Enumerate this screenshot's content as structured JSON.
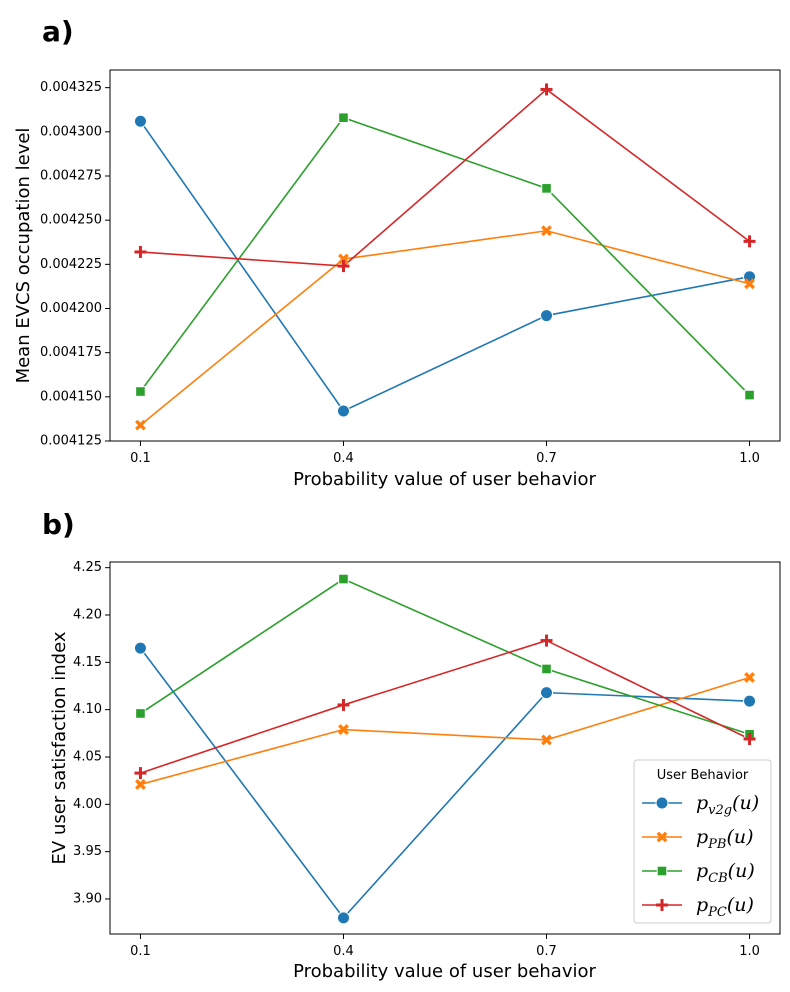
{
  "chart_data": [
    {
      "panel_label": "a)",
      "type": "line",
      "x": [
        0.1,
        0.4,
        0.7,
        1.0
      ],
      "x_tick_labels": [
        "0.1",
        "0.4",
        "0.7",
        "1.0"
      ],
      "xlabel": "Probability value of user behavior",
      "ylabel": "Mean EVCS occupation level",
      "ylim": [
        0.004125,
        0.004335
      ],
      "y_ticks": [
        0.004125,
        0.00415,
        0.004175,
        0.0042,
        0.004225,
        0.00425,
        0.004275,
        0.0043,
        0.004325
      ],
      "y_tick_labels": [
        "0.004125",
        "0.004150",
        "0.004175",
        "0.004200",
        "0.004225",
        "0.004250",
        "0.004275",
        "0.004300",
        "0.004325"
      ],
      "grid": false,
      "legend": null,
      "series": [
        {
          "key": "v2g",
          "color": "#1f77b4",
          "marker": "circle",
          "values": [
            0.004306,
            0.004142,
            0.004196,
            0.004218
          ]
        },
        {
          "key": "pb",
          "color": "#ff7f0e",
          "marker": "x",
          "values": [
            0.004134,
            0.004228,
            0.004244,
            0.004214
          ]
        },
        {
          "key": "cb",
          "color": "#2ca02c",
          "marker": "square",
          "values": [
            0.004153,
            0.004308,
            0.004268,
            0.004151
          ]
        },
        {
          "key": "pc",
          "color": "#d62728",
          "marker": "plus",
          "values": [
            0.004232,
            0.004224,
            0.004324,
            0.004238
          ]
        }
      ]
    },
    {
      "panel_label": "b)",
      "type": "line",
      "x": [
        0.1,
        0.4,
        0.7,
        1.0
      ],
      "x_tick_labels": [
        "0.1",
        "0.4",
        "0.7",
        "1.0"
      ],
      "xlabel": "Probability value of user behavior",
      "ylabel": "EV user satisfaction index",
      "ylim": [
        3.863,
        4.256
      ],
      "y_ticks": [
        3.9,
        3.95,
        4.0,
        4.05,
        4.1,
        4.15,
        4.2,
        4.25
      ],
      "y_tick_labels": [
        "3.90",
        "3.95",
        "4.00",
        "4.05",
        "4.10",
        "4.15",
        "4.20",
        "4.25"
      ],
      "grid": false,
      "legend": {
        "placement": "lower-right",
        "title": "User Behavior",
        "entries": [
          {
            "key": "v2g",
            "main": "p",
            "sub": "v2g",
            "arg": "(u)"
          },
          {
            "key": "pb",
            "main": "p",
            "sub": "PB",
            "arg": "(u)"
          },
          {
            "key": "cb",
            "main": "p",
            "sub": "CB",
            "arg": "(u)"
          },
          {
            "key": "pc",
            "main": "p",
            "sub": "PC",
            "arg": "(u)"
          }
        ]
      },
      "series": [
        {
          "key": "v2g",
          "color": "#1f77b4",
          "marker": "circle",
          "values": [
            4.165,
            3.88,
            4.118,
            4.109
          ]
        },
        {
          "key": "pb",
          "color": "#ff7f0e",
          "marker": "x",
          "values": [
            4.021,
            4.079,
            4.068,
            4.134
          ]
        },
        {
          "key": "cb",
          "color": "#2ca02c",
          "marker": "square",
          "values": [
            4.096,
            4.238,
            4.143,
            4.074
          ]
        },
        {
          "key": "pc",
          "color": "#d62728",
          "marker": "plus",
          "values": [
            4.033,
            4.105,
            4.173,
            4.069
          ]
        }
      ]
    }
  ]
}
